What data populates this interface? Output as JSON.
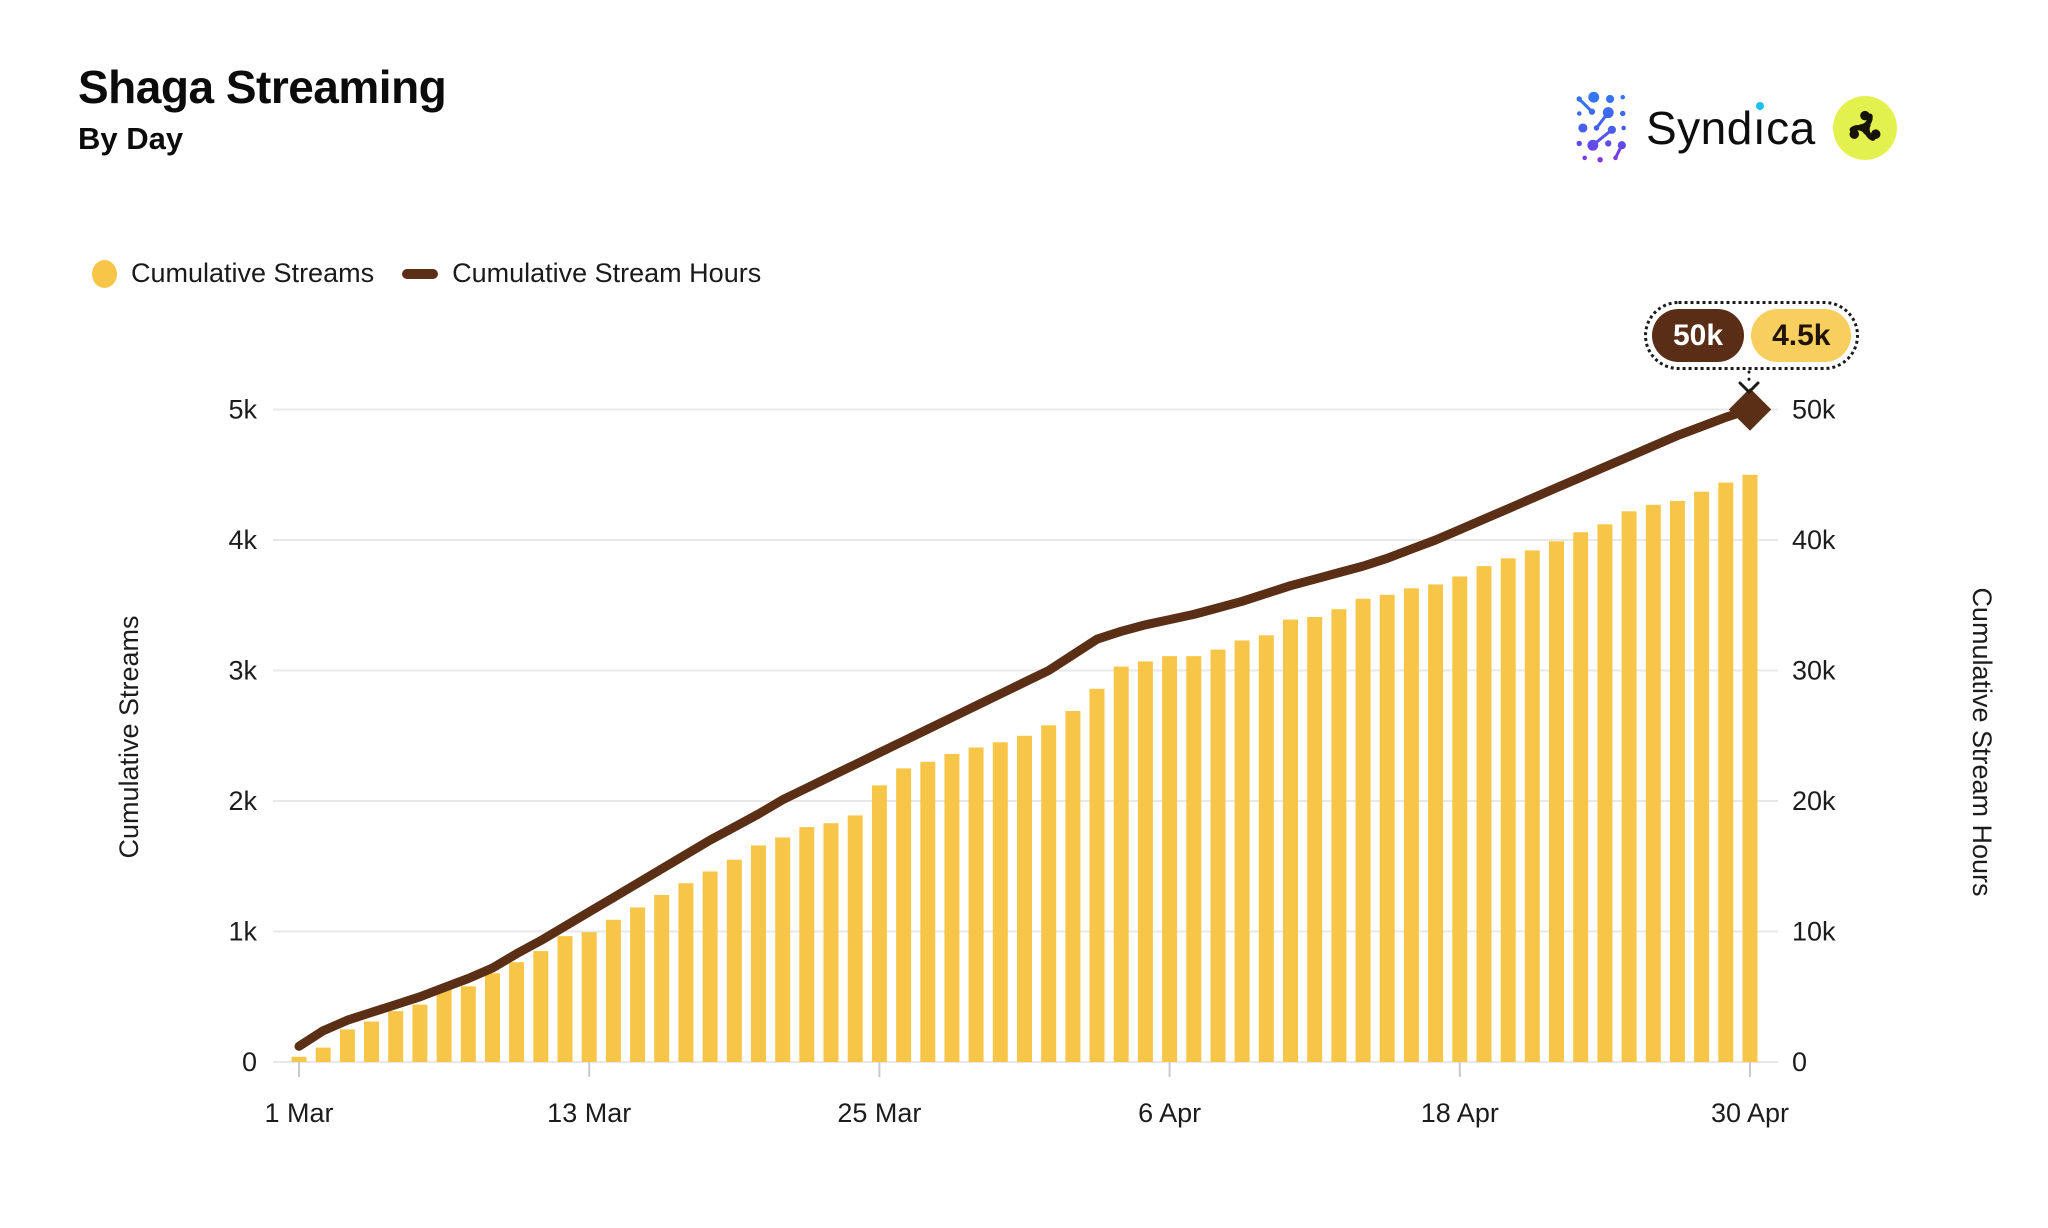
{
  "header": {
    "title": "Shaga Streaming",
    "subtitle": "By Day",
    "brand": "Syndica"
  },
  "legend": [
    {
      "label": "Cumulative Streams",
      "color": "#F7C649"
    },
    {
      "label": "Cumulative Stream Hours",
      "color": "#5A2F16"
    }
  ],
  "tooltip": {
    "hours_value": "50k",
    "streams_value": "4.5k",
    "hours_bg": "#5A2D16",
    "streams_bg": "#F8CE5E"
  },
  "colors": {
    "bar": "#F7C649",
    "line": "#5A2F16",
    "grid": "#E8E8EB",
    "tick": "#C9C9CE",
    "axis_text": "#1c1c1c",
    "badge_bg": "#E3F14F",
    "badge_glyph": "#161309",
    "syndica_blue": "#2F7BF6",
    "syndica_purple": "#8B31E0",
    "syndica_cyan": "#1BC1F4"
  },
  "chart_data": {
    "type": "bar",
    "title": "Shaga Streaming",
    "subtitle": "By Day",
    "points": 61,
    "x_start": "1 Mar",
    "x_end": "30 Apr",
    "x_tick_labels": [
      "1 Mar",
      "13 Mar",
      "25 Mar",
      "6 Apr",
      "18 Apr",
      "30 Apr"
    ],
    "x_tick_days": [
      0,
      12,
      24,
      36,
      48,
      60
    ],
    "left_axis": {
      "title": "Cumulative Streams",
      "ticks": [
        "0",
        "1k",
        "2k",
        "3k",
        "4k",
        "5k"
      ],
      "range": [
        0,
        5000
      ]
    },
    "right_axis": {
      "title": "Cumulative Stream Hours",
      "ticks": [
        "0",
        "10k",
        "20k",
        "30k",
        "40k",
        "50k"
      ],
      "range": [
        0,
        50000
      ]
    },
    "grid": true,
    "legend_position": "top-left",
    "series": [
      {
        "name": "Cumulative Streams",
        "type": "bar",
        "axis": "left",
        "color": "#F7C649",
        "values": [
          40,
          110,
          250,
          310,
          390,
          440,
          565,
          580,
          680,
          765,
          850,
          965,
          995,
          1090,
          1185,
          1280,
          1370,
          1460,
          1550,
          1660,
          1720,
          1800,
          1830,
          1890,
          2120,
          2250,
          2300,
          2360,
          2410,
          2450,
          2500,
          2580,
          2690,
          2860,
          3030,
          3070,
          3110,
          3110,
          3160,
          3230,
          3270,
          3390,
          3410,
          3470,
          3550,
          3580,
          3630,
          3660,
          3720,
          3800,
          3860,
          3920,
          3990,
          4060,
          4120,
          4220,
          4270,
          4300,
          4370,
          4440,
          4500
        ]
      },
      {
        "name": "Cumulative Stream Hours",
        "type": "line",
        "axis": "right",
        "color": "#5A2F16",
        "values": [
          1200,
          2400,
          3200,
          3800,
          4400,
          5000,
          5700,
          6400,
          7200,
          8300,
          9300,
          10400,
          11500,
          12600,
          13700,
          14800,
          15900,
          17000,
          18000,
          19000,
          20100,
          21000,
          21900,
          22800,
          23700,
          24600,
          25500,
          26400,
          27300,
          28200,
          29100,
          30000,
          31200,
          32400,
          33000,
          33500,
          33900,
          34300,
          34800,
          35300,
          35900,
          36500,
          37000,
          37500,
          38000,
          38600,
          39300,
          40000,
          40800,
          41600,
          42400,
          43200,
          44000,
          44800,
          45600,
          46400,
          47200,
          48000,
          48700,
          49400,
          50000
        ]
      }
    ],
    "end_annotation": {
      "hours": "50k",
      "streams": "4.5k"
    }
  }
}
